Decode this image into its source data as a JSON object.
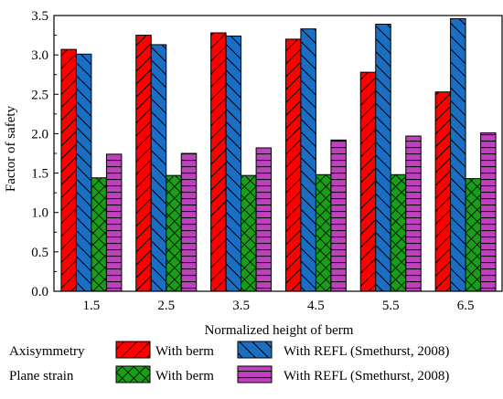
{
  "chart_data": {
    "type": "bar",
    "categories": [
      "1.5",
      "2.5",
      "3.5",
      "4.5",
      "5.5",
      "6.5"
    ],
    "xlabel": "Normalized height of berm",
    "ylabel": "Factor of safety",
    "ylim": [
      0,
      3.5
    ],
    "yticks": [
      "0.0",
      "0.5",
      "1.0",
      "1.5",
      "2.0",
      "2.5",
      "3.0",
      "3.5"
    ],
    "grid": false,
    "legend_position": "bottom",
    "series": [
      {
        "name": "With berm",
        "group": "Axisymmetry",
        "color": "#ff0000",
        "pattern": "diagonal-forward",
        "values": [
          3.07,
          3.25,
          3.28,
          3.2,
          2.78,
          2.53
        ]
      },
      {
        "name": "With REFL (Smethurst, 2008)",
        "group": "Axisymmetry",
        "color": "#1a6fc4",
        "pattern": "diagonal-backward",
        "values": [
          3.01,
          3.13,
          3.24,
          3.33,
          3.39,
          3.46
        ]
      },
      {
        "name": "With berm",
        "group": "Plane strain",
        "color": "#1a9e1a",
        "pattern": "crosshatch",
        "values": [
          1.44,
          1.47,
          1.47,
          1.48,
          1.48,
          1.43
        ]
      },
      {
        "name": "With REFL (Smethurst, 2008)",
        "group": "Plane strain",
        "color": "#c040c0",
        "pattern": "horizontal",
        "values": [
          1.74,
          1.75,
          1.82,
          1.92,
          1.97,
          2.01
        ]
      }
    ],
    "legend": {
      "rows": [
        {
          "label": "Axisymmetry",
          "series": [
            0,
            1
          ]
        },
        {
          "label": "Plane strain",
          "series": [
            2,
            3
          ]
        }
      ]
    }
  }
}
